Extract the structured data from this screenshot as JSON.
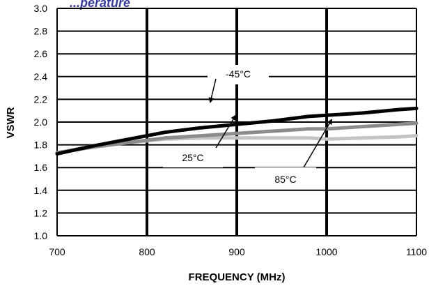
{
  "chart_data": {
    "type": "line",
    "title": "...perature",
    "xlabel": "FREQUENCY (MHz)",
    "ylabel": "VSWR",
    "xlim": [
      700,
      1100
    ],
    "ylim": [
      1.0,
      3.0
    ],
    "x_ticks": [
      "700",
      "800",
      "900",
      "1000",
      "1100"
    ],
    "y_ticks": [
      "1.0",
      "1.2",
      "1.4",
      "1.6",
      "1.8",
      "2.0",
      "2.2",
      "2.4",
      "2.6",
      "2.8",
      "3.0"
    ],
    "grid": true,
    "series": [
      {
        "name": "-45°C",
        "color": "#000000",
        "x": [
          700,
          740,
          780,
          820,
          860,
          900,
          940,
          980,
          1000,
          1040,
          1080,
          1100
        ],
        "y": [
          1.72,
          1.79,
          1.85,
          1.91,
          1.95,
          1.98,
          2.01,
          2.05,
          2.06,
          2.08,
          2.11,
          2.12
        ]
      },
      {
        "name": "25°C",
        "color": "#8c8c8c",
        "x": [
          700,
          740,
          780,
          820,
          860,
          900,
          940,
          980,
          1000,
          1040,
          1080,
          1100
        ],
        "y": [
          1.73,
          1.78,
          1.82,
          1.86,
          1.88,
          1.9,
          1.92,
          1.94,
          1.94,
          1.96,
          1.98,
          1.99
        ]
      },
      {
        "name": "85°C",
        "color": "#c3c3c3",
        "x": [
          700,
          740,
          780,
          820,
          860,
          900,
          940,
          980,
          1000,
          1040,
          1080,
          1100
        ],
        "y": [
          1.73,
          1.79,
          1.82,
          1.85,
          1.86,
          1.86,
          1.86,
          1.86,
          1.85,
          1.86,
          1.87,
          1.88
        ]
      }
    ]
  }
}
